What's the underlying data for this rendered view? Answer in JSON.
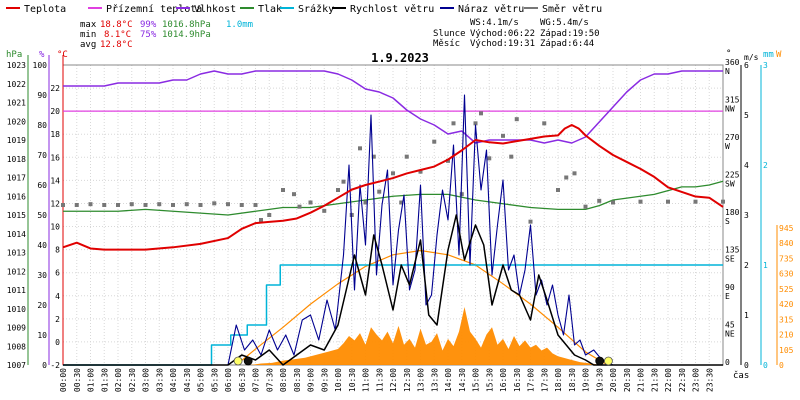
{
  "legend": [
    {
      "label": "Teplota",
      "color": "#e00000"
    },
    {
      "label": "Přízemní teplota",
      "color": "#e040e0"
    },
    {
      "label": "Vlhkost",
      "color": "#8a2be2"
    },
    {
      "label": "Tlak",
      "color": "#2e8b2e"
    },
    {
      "label": "Srážky",
      "color": "#00b4d8"
    },
    {
      "label": "Rychlost větru",
      "color": "#000000"
    },
    {
      "label": "Náraz větru",
      "color": "#000090"
    },
    {
      "label": "Směr větru",
      "color": "#777777"
    }
  ],
  "stats": {
    "max": {
      "label": "max",
      "temp": "18.8°C",
      "hum": "99%",
      "press": "1016.8hPa",
      "rain": "1.0mm"
    },
    "min": {
      "label": "min",
      "temp": "8.1°C",
      "hum": "75%",
      "press": "1014.9hPa"
    },
    "avg": {
      "label": "avg",
      "temp": "12.8°C"
    }
  },
  "wind_info": {
    "ws": "WS:4.1m/s",
    "wg": "WG:5.4m/s"
  },
  "sun": {
    "label": "Slunce",
    "rise": "Východ:06:22",
    "set": "Západ:19:50"
  },
  "moon": {
    "label": "Měsíc",
    "rise": "Východ:19:31",
    "set": "Západ:6:44"
  },
  "colors": {
    "temp": "#e00000",
    "ground": "#e040e0",
    "humidity": "#8a2be2",
    "pressure": "#2e8b2e",
    "rain": "#00b4d8",
    "wind": "#000000",
    "gust": "#000090",
    "dir": "#777777",
    "solar": "#ff8c00",
    "solar_theory": "#ff8c00"
  },
  "chart_data": {
    "type": "line",
    "title": "1.9.2023",
    "xlabel": "čas",
    "x_ticks": [
      "00:00",
      "00:30",
      "01:00",
      "01:30",
      "02:00",
      "02:30",
      "03:00",
      "03:30",
      "04:00",
      "04:30",
      "05:00",
      "05:30",
      "06:00",
      "06:30",
      "07:00",
      "07:30",
      "08:00",
      "08:30",
      "09:00",
      "09:30",
      "10:00",
      "10:30",
      "11:00",
      "11:30",
      "12:00",
      "12:30",
      "13:00",
      "13:30",
      "14:00",
      "14:30",
      "15:00",
      "15:30",
      "16:00",
      "16:30",
      "17:00",
      "17:30",
      "18:00",
      "18:30",
      "19:00",
      "19:30",
      "20:00",
      "20:30",
      "21:00",
      "21:30",
      "22:00",
      "22:30",
      "23:00",
      "23:30"
    ],
    "axes": {
      "pressure": {
        "label": "hPa",
        "range": [
          1007,
          1023
        ],
        "ticks": [
          1007,
          1008,
          1009,
          1010,
          1011,
          1012,
          1013,
          1014,
          1015,
          1016,
          1017,
          1018,
          1019,
          1020,
          1021,
          1022,
          1023
        ]
      },
      "humidity": {
        "label": "%",
        "range": [
          0,
          100
        ],
        "ticks": [
          0,
          10,
          20,
          30,
          40,
          50,
          60,
          70,
          80,
          90,
          100
        ]
      },
      "temperature": {
        "label": "°C",
        "range": [
          -2,
          24
        ],
        "ticks": [
          -2,
          0,
          2,
          4,
          6,
          8,
          10,
          12,
          14,
          16,
          18,
          20,
          22
        ]
      },
      "wind_dir": {
        "label": "°",
        "range": [
          0,
          360
        ],
        "ticks": [
          0,
          45,
          90,
          135,
          180,
          225,
          270,
          315,
          360
        ],
        "compass": [
          "",
          "NE",
          "E",
          "SE",
          "S",
          "SW",
          "W",
          "NW",
          "N"
        ]
      },
      "wind_speed": {
        "label": "m/s",
        "range": [
          0,
          6
        ],
        "ticks": [
          0,
          1,
          2,
          3,
          4,
          5,
          6
        ]
      },
      "rain": {
        "label": "mm",
        "range": [
          0,
          3
        ],
        "ticks": [
          0,
          1,
          2,
          3
        ]
      },
      "solar": {
        "label": "W",
        "range": [
          0,
          945
        ],
        "ticks": [
          0,
          105,
          210,
          315,
          420,
          525,
          630,
          735,
          840,
          945
        ]
      }
    },
    "ground_temp_line": 20,
    "series": [
      {
        "name": "Teplota",
        "axis": "temperature",
        "x": [
          0,
          0.5,
          1,
          1.5,
          2,
          3,
          4,
          5,
          6,
          6.5,
          7,
          7.5,
          8,
          8.5,
          9,
          9.5,
          10,
          10.5,
          11,
          11.5,
          12,
          12.5,
          13,
          13.5,
          14,
          14.5,
          15,
          15.5,
          16,
          16.5,
          17,
          17.5,
          18,
          18.25,
          18.5,
          18.75,
          19,
          19.5,
          20,
          20.5,
          21,
          21.5,
          22,
          22.5,
          23,
          23.5,
          24
        ],
        "y": [
          8.2,
          8.6,
          8.1,
          8.0,
          8.0,
          8.0,
          8.2,
          8.5,
          9.0,
          9.8,
          10.3,
          10.4,
          10.5,
          10.7,
          11.2,
          11.8,
          12.5,
          13.2,
          13.6,
          13.9,
          14.2,
          14.6,
          14.9,
          15.2,
          15.8,
          16.6,
          17.5,
          17.3,
          17.2,
          17.4,
          17.6,
          17.8,
          17.9,
          18.5,
          18.8,
          18.5,
          17.9,
          17.0,
          16.2,
          15.6,
          15.0,
          14.3,
          13.4,
          13.0,
          12.6,
          12.5,
          11.7
        ]
      },
      {
        "name": "Vlhkost",
        "axis": "humidity",
        "x": [
          0,
          0.5,
          1,
          1.5,
          2,
          2.5,
          3,
          3.5,
          4,
          4.5,
          5,
          5.5,
          6,
          6.5,
          7,
          7.5,
          8,
          8.5,
          9,
          9.5,
          10,
          10.5,
          11,
          11.5,
          12,
          12.5,
          13,
          13.5,
          14,
          14.5,
          15,
          15.5,
          16,
          16.5,
          17,
          17.5,
          18,
          18.5,
          19,
          19.5,
          20,
          20.5,
          21,
          21.5,
          22,
          22.5,
          23,
          23.5,
          24
        ],
        "y": [
          93,
          93,
          93,
          93,
          94,
          94,
          94,
          94,
          95,
          95,
          97,
          98,
          97,
          97,
          98,
          98,
          98,
          98,
          98,
          98,
          97,
          95,
          92,
          91,
          89,
          85,
          82,
          80,
          77,
          78,
          74,
          75,
          75,
          75,
          75,
          74,
          75,
          74,
          76,
          81,
          86,
          91,
          95,
          97,
          97,
          98,
          98,
          98,
          98
        ]
      },
      {
        "name": "Tlak",
        "axis": "pressure",
        "x": [
          0,
          1,
          2,
          3,
          4,
          5,
          6,
          7,
          8,
          9,
          10,
          11,
          12,
          13,
          14,
          15,
          16,
          17,
          18,
          19,
          19.5,
          20,
          20.5,
          21,
          21.5,
          22,
          22.5,
          23,
          23.5,
          24
        ],
        "y": [
          1015.2,
          1015.2,
          1015.2,
          1015.3,
          1015.2,
          1015.1,
          1015.0,
          1015.2,
          1015.4,
          1015.4,
          1015.6,
          1015.8,
          1016.0,
          1016.1,
          1016.1,
          1015.8,
          1015.6,
          1015.4,
          1015.3,
          1015.3,
          1015.5,
          1015.8,
          1015.9,
          1016.0,
          1016.1,
          1016.3,
          1016.5,
          1016.5,
          1016.6,
          1016.8
        ]
      },
      {
        "name": "Srážky",
        "axis": "rain",
        "x": [
          0,
          5.3,
          5.4,
          6.0,
          6.1,
          6.6,
          6.7,
          7.3,
          7.4,
          7.8,
          7.9,
          24
        ],
        "y": [
          0,
          0,
          0.2,
          0.2,
          0.3,
          0.3,
          0.4,
          0.4,
          0.8,
          0.8,
          1.0,
          1.0
        ]
      },
      {
        "name": "Rychlost větru",
        "axis": "wind_speed",
        "x": [
          0,
          6.0,
          6.5,
          7.0,
          7.5,
          8.0,
          8.5,
          9.0,
          9.5,
          10.0,
          10.3,
          10.6,
          11.0,
          11.3,
          11.6,
          12.0,
          12.3,
          12.6,
          13.0,
          13.3,
          13.6,
          14.0,
          14.3,
          14.6,
          15.0,
          15.3,
          15.6,
          16.0,
          16.3,
          16.6,
          17.0,
          17.3,
          17.6,
          18.0,
          18.3,
          18.6,
          19.0,
          19.3,
          19.6,
          20,
          24
        ],
        "y": [
          0,
          0,
          0.2,
          0.1,
          0.3,
          0,
          0.2,
          0.4,
          0.3,
          0.8,
          1.5,
          2.2,
          1.4,
          2.6,
          2.0,
          1.1,
          2.0,
          1.6,
          2.5,
          1.0,
          0.8,
          2.3,
          3.0,
          2.1,
          2.8,
          2.4,
          1.2,
          2.0,
          1.5,
          1.4,
          0.9,
          1.8,
          1.3,
          0.6,
          0.4,
          0.2,
          0.1,
          0,
          0,
          0,
          0
        ]
      },
      {
        "name": "Náraz větru",
        "axis": "wind_speed",
        "x": [
          0,
          6.0,
          6.3,
          6.6,
          6.9,
          7.2,
          7.5,
          7.8,
          8.1,
          8.4,
          8.7,
          9.0,
          9.3,
          9.6,
          9.9,
          10.2,
          10.4,
          10.6,
          10.8,
          11.0,
          11.2,
          11.4,
          11.6,
          11.8,
          12.0,
          12.2,
          12.4,
          12.6,
          12.8,
          13.0,
          13.2,
          13.4,
          13.6,
          13.8,
          14.0,
          14.2,
          14.4,
          14.6,
          14.8,
          15.0,
          15.2,
          15.4,
          15.6,
          15.8,
          16.0,
          16.2,
          16.4,
          16.6,
          16.8,
          17.0,
          17.2,
          17.4,
          17.6,
          17.8,
          18.0,
          18.2,
          18.4,
          18.6,
          18.8,
          19.0,
          19.3,
          19.6,
          20,
          24
        ],
        "y": [
          0,
          0,
          0.8,
          0.3,
          0.5,
          0.2,
          0.7,
          0.3,
          0.6,
          0.2,
          0.9,
          1.0,
          0.5,
          1.3,
          0.7,
          2.2,
          4.0,
          1.5,
          3.6,
          2.4,
          5.0,
          1.8,
          3.2,
          3.9,
          1.6,
          2.7,
          3.4,
          1.5,
          1.9,
          3.6,
          1.2,
          1.4,
          2.6,
          3.5,
          2.9,
          4.4,
          2.2,
          5.4,
          2.0,
          4.8,
          3.5,
          4.3,
          1.8,
          2.8,
          3.7,
          1.9,
          2.2,
          1.4,
          1.9,
          2.8,
          1.4,
          1.7,
          1.2,
          1.6,
          1.0,
          0.6,
          1.4,
          0.4,
          0.5,
          0.2,
          0.3,
          0.1,
          0,
          0
        ]
      },
      {
        "name": "Solar",
        "axis": "solar",
        "x": [
          0,
          6.8,
          7.2,
          7.6,
          8.0,
          8.4,
          8.8,
          9.2,
          9.6,
          10.0,
          10.2,
          10.4,
          10.6,
          10.8,
          11.0,
          11.2,
          11.4,
          11.6,
          11.8,
          12.0,
          12.2,
          12.4,
          12.6,
          12.8,
          13.0,
          13.2,
          13.4,
          13.6,
          13.8,
          14.0,
          14.2,
          14.4,
          14.6,
          14.8,
          15.0,
          15.2,
          15.4,
          15.6,
          15.8,
          16.0,
          16.2,
          16.4,
          16.6,
          16.8,
          17.0,
          17.2,
          17.4,
          17.6,
          17.8,
          18.0,
          18.4,
          18.8,
          19.2,
          19.6,
          24
        ],
        "y": [
          0,
          0,
          10,
          15,
          30,
          40,
          50,
          70,
          90,
          110,
          150,
          200,
          170,
          220,
          140,
          260,
          210,
          170,
          230,
          150,
          270,
          140,
          180,
          120,
          250,
          140,
          160,
          220,
          100,
          180,
          130,
          230,
          400,
          230,
          180,
          120,
          210,
          260,
          140,
          180,
          110,
          200,
          130,
          170,
          120,
          140,
          100,
          120,
          80,
          60,
          40,
          20,
          10,
          0,
          0
        ]
      },
      {
        "name": "Solar theoretical",
        "axis": "solar",
        "x": [
          6.3,
          7,
          8,
          9,
          10,
          11,
          12,
          13,
          14,
          15,
          16,
          17,
          18,
          19,
          19.8
        ],
        "y": [
          0,
          110,
          260,
          420,
          560,
          680,
          760,
          790,
          760,
          690,
          560,
          420,
          260,
          90,
          0
        ]
      }
    ],
    "wind_direction_points": {
      "axis": "wind_dir",
      "x": [
        0,
        0.5,
        1,
        1.5,
        2,
        2.5,
        3,
        3.5,
        4,
        4.5,
        5,
        5.5,
        6,
        6.5,
        7,
        7.2,
        7.5,
        8,
        8.4,
        8.6,
        9,
        9.5,
        10,
        10.2,
        10.5,
        10.8,
        11,
        11.3,
        11.5,
        12,
        12.3,
        12.5,
        13,
        13.5,
        14,
        14.2,
        14.5,
        15,
        15.2,
        15.5,
        16,
        16.3,
        16.5,
        17,
        17.5,
        18,
        18.3,
        18.6,
        19,
        19.5,
        20,
        21,
        22,
        23,
        24
      ],
      "y": [
        192,
        192,
        193,
        192,
        192,
        193,
        192,
        193,
        192,
        193,
        192,
        194,
        193,
        192,
        192,
        174,
        180,
        210,
        205,
        190,
        195,
        185,
        210,
        220,
        180,
        260,
        195,
        250,
        208,
        230,
        195,
        250,
        232,
        268,
        245,
        290,
        205,
        290,
        302,
        248,
        275,
        250,
        295,
        172,
        290,
        210,
        225,
        230,
        190,
        197,
        195,
        196,
        196,
        196,
        196
      ]
    },
    "markers": {
      "sunrise": "06:22",
      "sunset": "19:50",
      "moonrise": "19:31",
      "moonset": "06:44"
    }
  }
}
